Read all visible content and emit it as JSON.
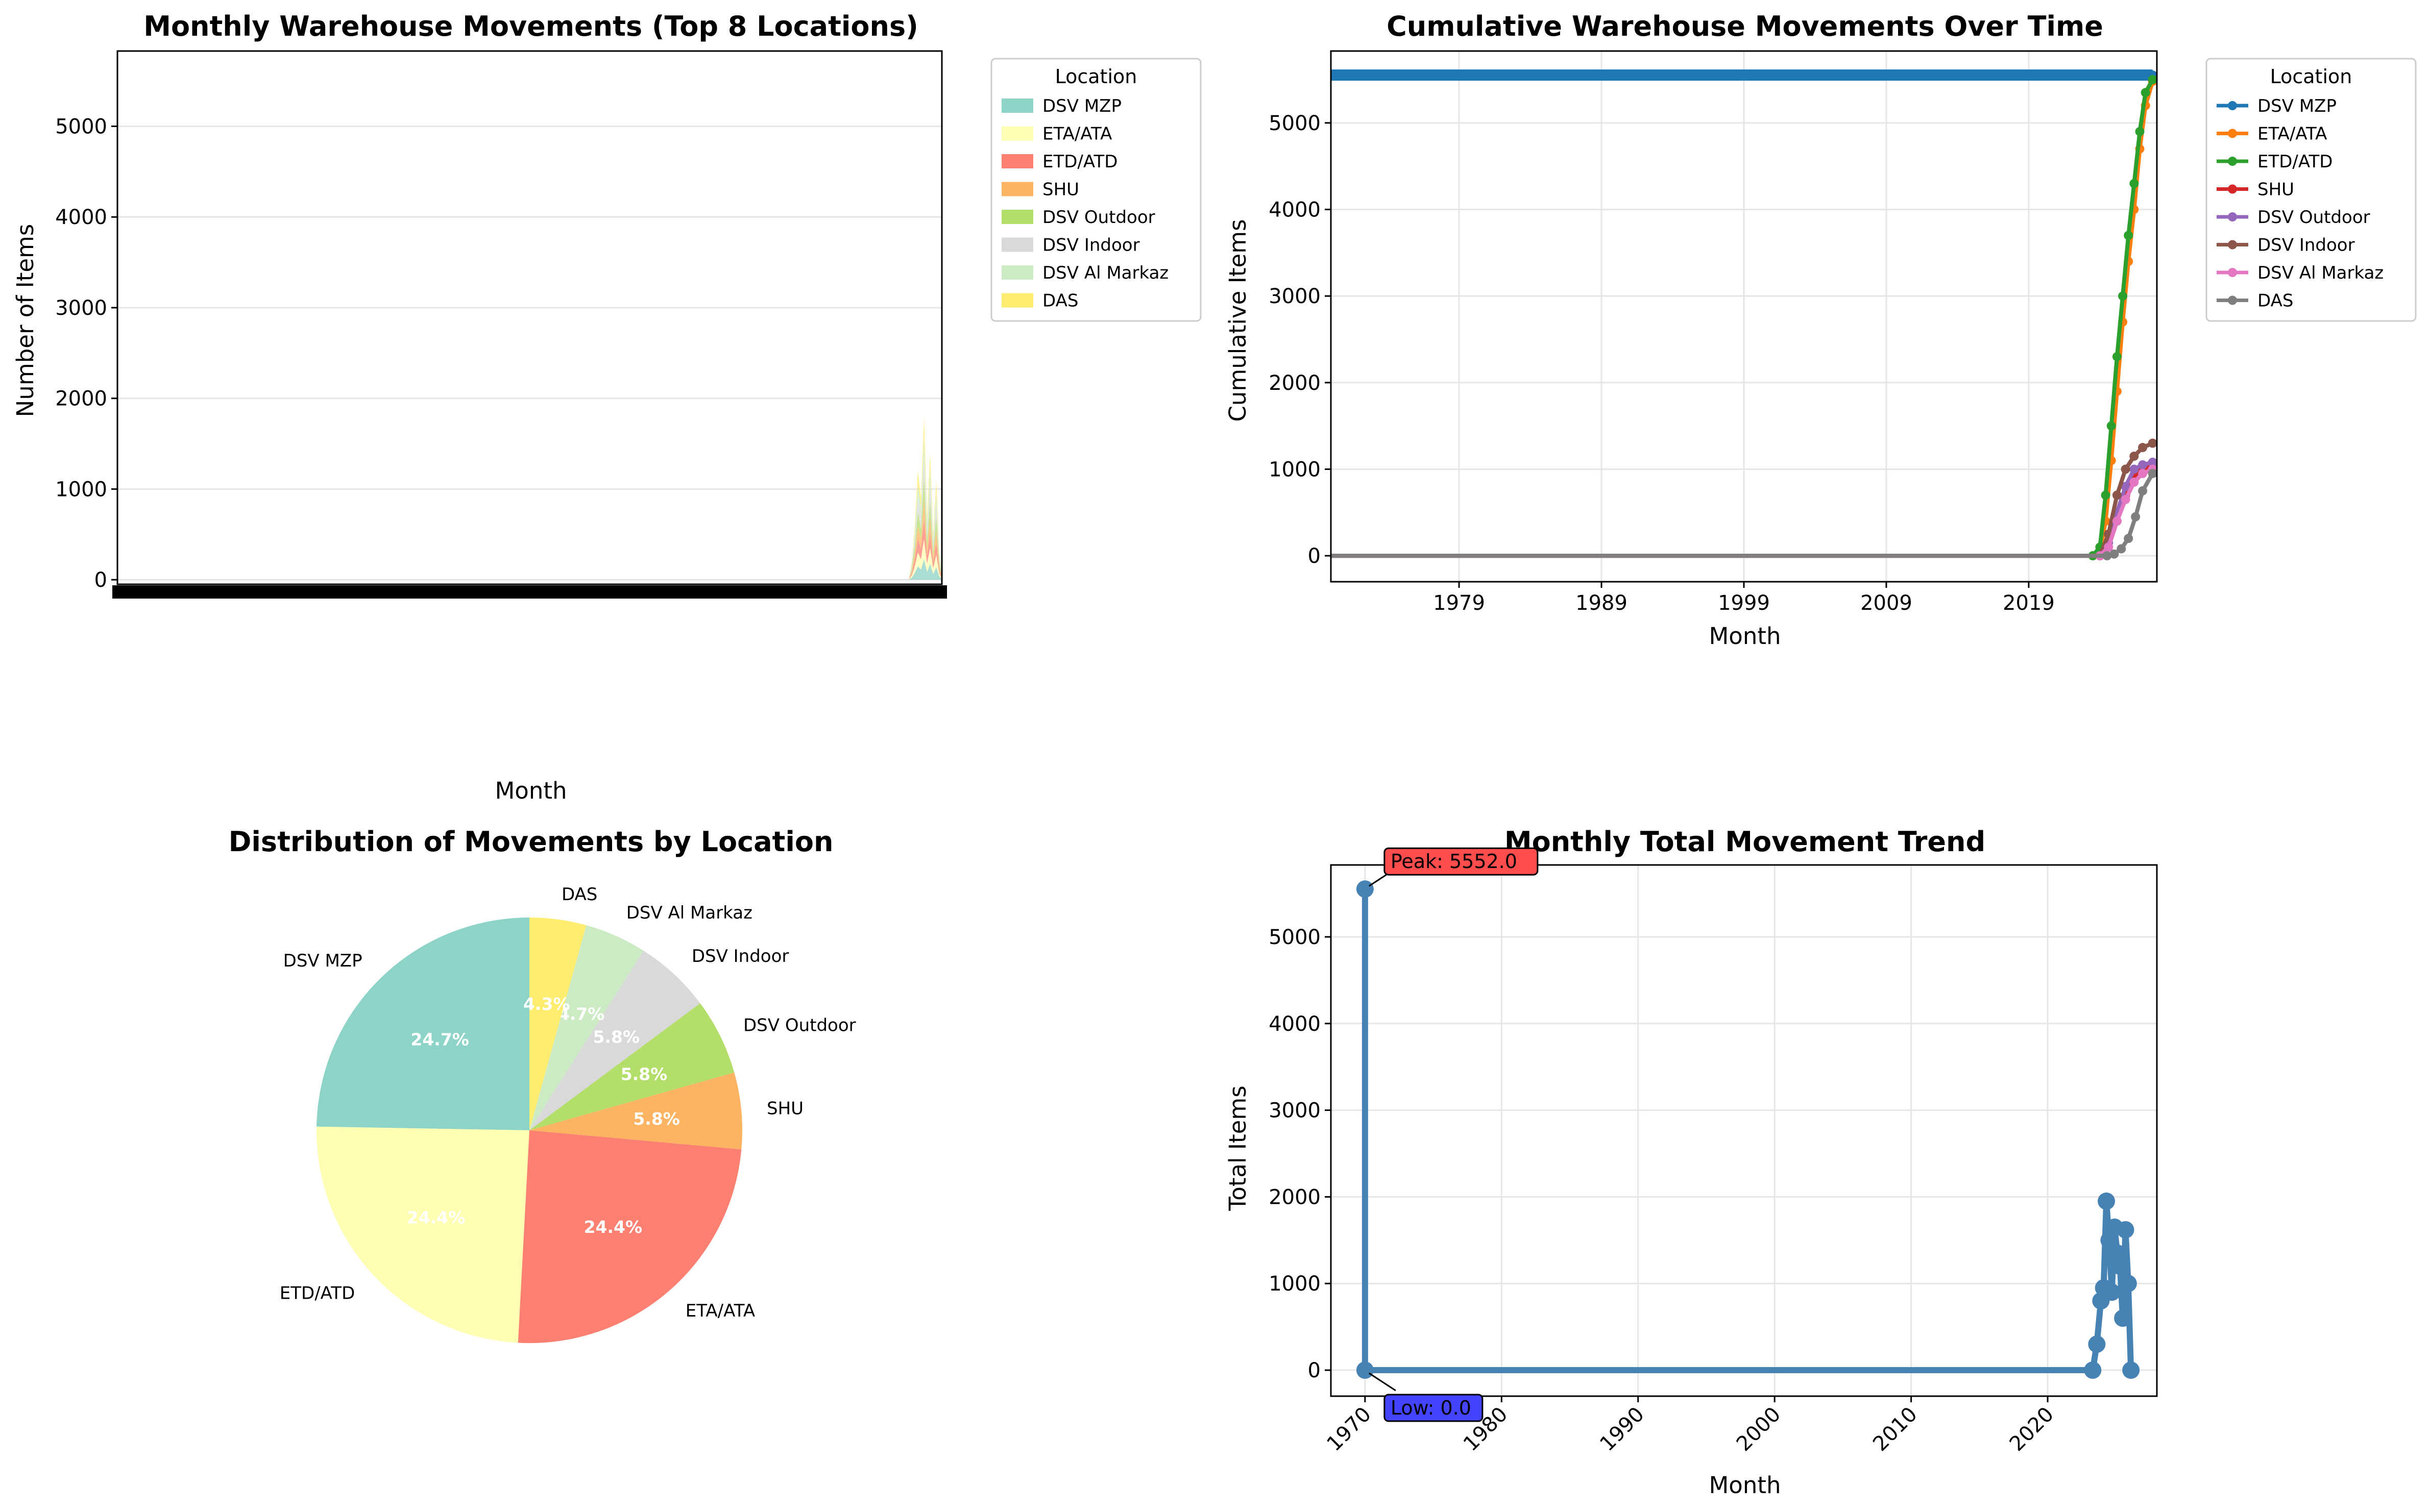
{
  "chart_data": [
    {
      "type": "area",
      "title": "Monthly Warehouse Movements (Top 8 Locations)",
      "xlabel": "Month",
      "ylabel": "Number of Items",
      "ylim": [
        -50,
        5830
      ],
      "yticks": [
        0,
        1000,
        2000,
        3000,
        4000,
        5000
      ],
      "grid": "y",
      "legend_title": "Location",
      "legend_position": "outside-right",
      "series": [
        {
          "name": "DSV MZP",
          "color": "#8dd3c7"
        },
        {
          "name": "ETA/ATA",
          "color": "#ffffb3"
        },
        {
          "name": "ETD/ATD",
          "color": "#fb8072"
        },
        {
          "name": "SHU",
          "color": "#fdb462"
        },
        {
          "name": "DSV Outdoor",
          "color": "#b3de69"
        },
        {
          "name": "DSV Indoor",
          "color": "#d9d9d9"
        },
        {
          "name": "DSV Al Markaz",
          "color": "#ccebc5"
        },
        {
          "name": "DAS",
          "color": "#ffed6f"
        }
      ],
      "stack_totals_recent": [
        0,
        200,
        600,
        1200,
        900,
        1800,
        700,
        1400,
        500,
        1100,
        300,
        0
      ]
    },
    {
      "type": "line",
      "title": "Cumulative Warehouse Movements Over Time",
      "xlabel": "Month",
      "ylabel": "Cumulative Items",
      "xlim": [
        1970,
        2028
      ],
      "ylim": [
        -300,
        5830
      ],
      "xticks": [
        1979,
        1989,
        1999,
        2009,
        2019
      ],
      "yticks": [
        0,
        1000,
        2000,
        3000,
        4000,
        5000
      ],
      "grid": "both",
      "legend_title": "Location",
      "legend_position": "outside-right",
      "series": [
        {
          "name": "DSV MZP",
          "color": "#1f77b4",
          "x": [
            1970,
            2027.7
          ],
          "y": [
            5552,
            5552
          ]
        },
        {
          "name": "ETA/ATA",
          "color": "#ff7f0e",
          "x": [
            1970,
            2023.5,
            2024,
            2024.4,
            2024.8,
            2025.2,
            2025.6,
            2026,
            2026.4,
            2026.8,
            2027.2,
            2027.7
          ],
          "y": [
            0,
            0,
            50,
            400,
            1100,
            1900,
            2700,
            3400,
            4000,
            4700,
            5200,
            5480
          ]
        },
        {
          "name": "ETD/ATD",
          "color": "#2ca02c",
          "x": [
            1970,
            2023.5,
            2024,
            2024.4,
            2024.8,
            2025.2,
            2025.6,
            2026,
            2026.4,
            2026.8,
            2027.2,
            2027.7
          ],
          "y": [
            0,
            0,
            100,
            700,
            1500,
            2300,
            3000,
            3700,
            4300,
            4900,
            5350,
            5500
          ]
        },
        {
          "name": "SHU",
          "color": "#d62728",
          "x": [
            1970,
            2024,
            2024.6,
            2025.2,
            2025.8,
            2026.4,
            2027,
            2027.7
          ],
          "y": [
            0,
            0,
            100,
            400,
            700,
            900,
            1000,
            1050
          ]
        },
        {
          "name": "DSV Outdoor",
          "color": "#9467bd",
          "x": [
            1970,
            2024,
            2024.6,
            2025.2,
            2025.8,
            2026.4,
            2027,
            2027.7
          ],
          "y": [
            0,
            0,
            150,
            500,
            800,
            1000,
            1050,
            1080
          ]
        },
        {
          "name": "DSV Indoor",
          "color": "#8c564b",
          "x": [
            1970,
            2024,
            2024.6,
            2025.2,
            2025.8,
            2026.4,
            2027,
            2027.7
          ],
          "y": [
            0,
            0,
            250,
            700,
            1000,
            1150,
            1250,
            1300
          ]
        },
        {
          "name": "DSV Al Markaz",
          "color": "#e377c2",
          "x": [
            1970,
            2024,
            2024.6,
            2025.2,
            2025.8,
            2026.4,
            2027,
            2027.7
          ],
          "y": [
            0,
            0,
            100,
            400,
            650,
            850,
            950,
            1000
          ]
        },
        {
          "name": "DAS",
          "color": "#7f7f7f",
          "x": [
            1970,
            2024.5,
            2025,
            2025.5,
            2026,
            2026.5,
            2027,
            2027.7
          ],
          "y": [
            0,
            0,
            20,
            80,
            200,
            450,
            750,
            950
          ]
        }
      ]
    },
    {
      "type": "pie",
      "title": "Distribution of Movements by Location",
      "start_angle": 90,
      "direction": "counterclockwise",
      "categories": [
        "DSV MZP",
        "ETD/ATD",
        "ETA/ATA",
        "SHU",
        "DSV Outdoor",
        "DSV Indoor",
        "DSV Al Markaz",
        "DAS"
      ],
      "values": [
        24.7,
        24.4,
        24.4,
        5.8,
        5.8,
        5.8,
        4.7,
        4.3
      ],
      "labels": [
        "24.7%",
        "24.4%",
        "24.4%",
        "5.8%",
        "5.8%",
        "5.8%",
        "4.7%",
        "4.3%"
      ],
      "colors": [
        "#8dd3c7",
        "#ffffb3",
        "#fb8072",
        "#fdb462",
        "#b3de69",
        "#d9d9d9",
        "#ccebc5",
        "#ffed6f"
      ]
    },
    {
      "type": "line",
      "title": "Monthly Total Movement Trend",
      "xlabel": "Month",
      "ylabel": "Total Items",
      "xlim": [
        1967.5,
        2028
      ],
      "ylim": [
        -300,
        5830
      ],
      "xticks": [
        1970,
        1980,
        1990,
        2000,
        2010,
        2020
      ],
      "yticks": [
        0,
        1000,
        2000,
        3000,
        4000,
        5000
      ],
      "grid": "both",
      "color": "#4682b4",
      "x": [
        1970,
        1970,
        2023.3,
        2023.6,
        2023.9,
        2024.1,
        2024.3,
        2024.5,
        2024.7,
        2024.9,
        2025.1,
        2025.3,
        2025.5,
        2025.7,
        2025.9,
        2026.1
      ],
      "y": [
        5552,
        0,
        0,
        300,
        800,
        950,
        1950,
        1500,
        900,
        1650,
        1350,
        1200,
        600,
        1620,
        1000,
        0
      ],
      "annotations": [
        {
          "text": "Peak: 5552.0",
          "color": "#ff4d4d"
        },
        {
          "text": "Low: 0.0",
          "color": "#4444ff"
        }
      ]
    }
  ]
}
